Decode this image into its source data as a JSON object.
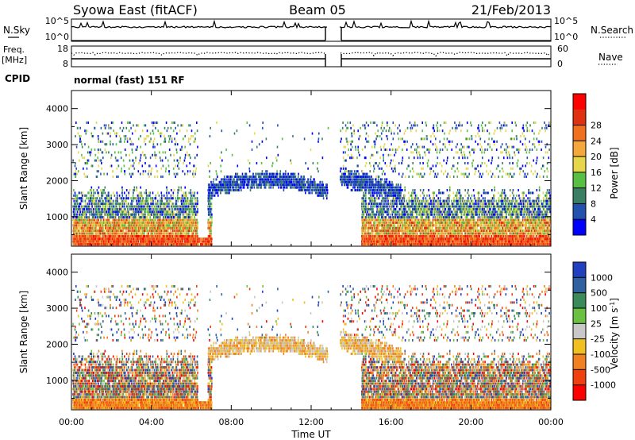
{
  "header": {
    "station": "Syowa East (fitACF)",
    "beam": "Beam 05",
    "date": "21/Feb/2013"
  },
  "mode_text": "normal (fast) 151 RF",
  "chart_data": [
    {
      "type": "line",
      "panel": "noise",
      "left_label": "N.Sky",
      "right_label": "N.Search",
      "left_ticks": [
        "10^5",
        "10^0"
      ],
      "right_ticks": [
        "10^5",
        "10^0"
      ],
      "data_gap": [
        "12:50",
        "13:25"
      ]
    },
    {
      "type": "line",
      "panel": "frequency",
      "left_label_lines": [
        "Freq.",
        "[MHz]"
      ],
      "right_label": "Nave",
      "left_ticks": [
        "18",
        "8"
      ],
      "right_ticks": [
        "60",
        "0"
      ],
      "cpid_label": "CPID",
      "data_gap": [
        "12:50",
        "13:25"
      ]
    },
    {
      "type": "heatmap",
      "panel": "power",
      "ylabel": "Slant Range [km]",
      "yticks": [
        1000,
        2000,
        3000,
        4000
      ],
      "ylim": [
        180,
        4500
      ],
      "colorbar_label": "Power [dB]",
      "colorbar_ticks": [
        "4",
        "8",
        "12",
        "16",
        "20",
        "24",
        "28"
      ],
      "colorbar_colors": [
        "#0000ff",
        "#2251b0",
        "#3a7f64",
        "#57c044",
        "#e6d64a",
        "#f4a83c",
        "#f07020",
        "#e03010",
        "#ff0000"
      ]
    },
    {
      "type": "heatmap",
      "panel": "velocity",
      "ylabel": "Slant Range [km]",
      "yticks": [
        1000,
        2000,
        3000,
        4000
      ],
      "ylim": [
        180,
        4500
      ],
      "xlabel": "Time UT",
      "xticks": [
        "00:00",
        "04:00",
        "08:00",
        "12:00",
        "16:00",
        "20:00",
        "00:00"
      ],
      "colorbar_label": "Velocity [m s-1]",
      "colorbar_ticks": [
        "1000",
        "500",
        "100",
        "25",
        "-25",
        "-100",
        "-500",
        "-1000"
      ],
      "colorbar_colors": [
        "#2040c0",
        "#3060a0",
        "#3a8a5a",
        "#6ac040",
        "#c8c8c8",
        "#f0c020",
        "#f08020",
        "#f04010",
        "#ff0000"
      ]
    }
  ]
}
